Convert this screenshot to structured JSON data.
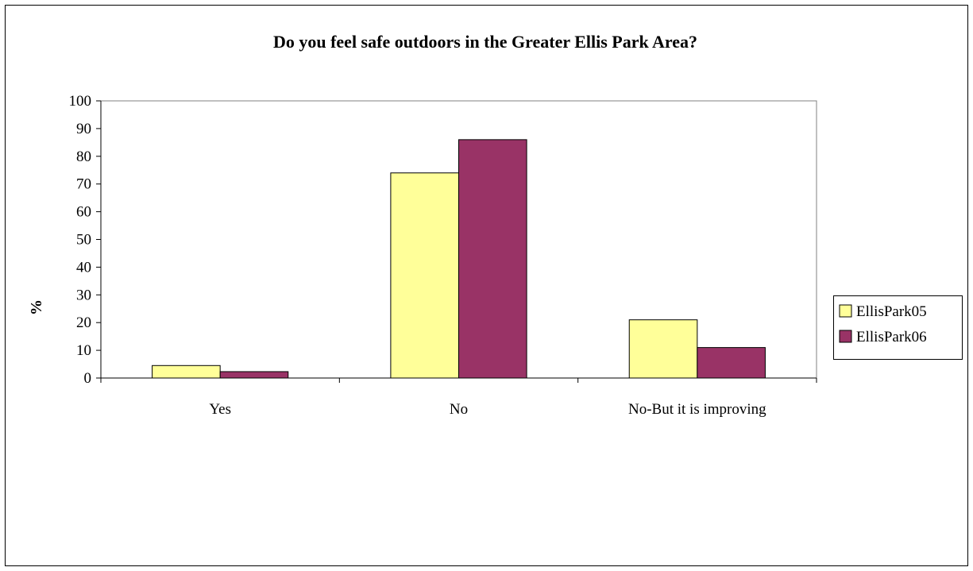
{
  "chart_data": {
    "type": "bar",
    "title": "Do you feel safe outdoors in the Greater Ellis Park Area?",
    "xlabel": "",
    "ylabel": "%",
    "categories": [
      "Yes",
      "No",
      "No-But it is improving"
    ],
    "series": [
      {
        "name": "EllisPark05",
        "values": [
          4.5,
          74,
          21
        ],
        "color": "#FFFF99"
      },
      {
        "name": "EllisPark06",
        "values": [
          2.3,
          86,
          11
        ],
        "color": "#993366"
      }
    ],
    "ylim": [
      0,
      100
    ],
    "yticks": [
      "0",
      "10",
      "20",
      "30",
      "40",
      "50",
      "60",
      "70",
      "80",
      "90",
      "100"
    ],
    "grid": false,
    "legend_position": "right"
  }
}
